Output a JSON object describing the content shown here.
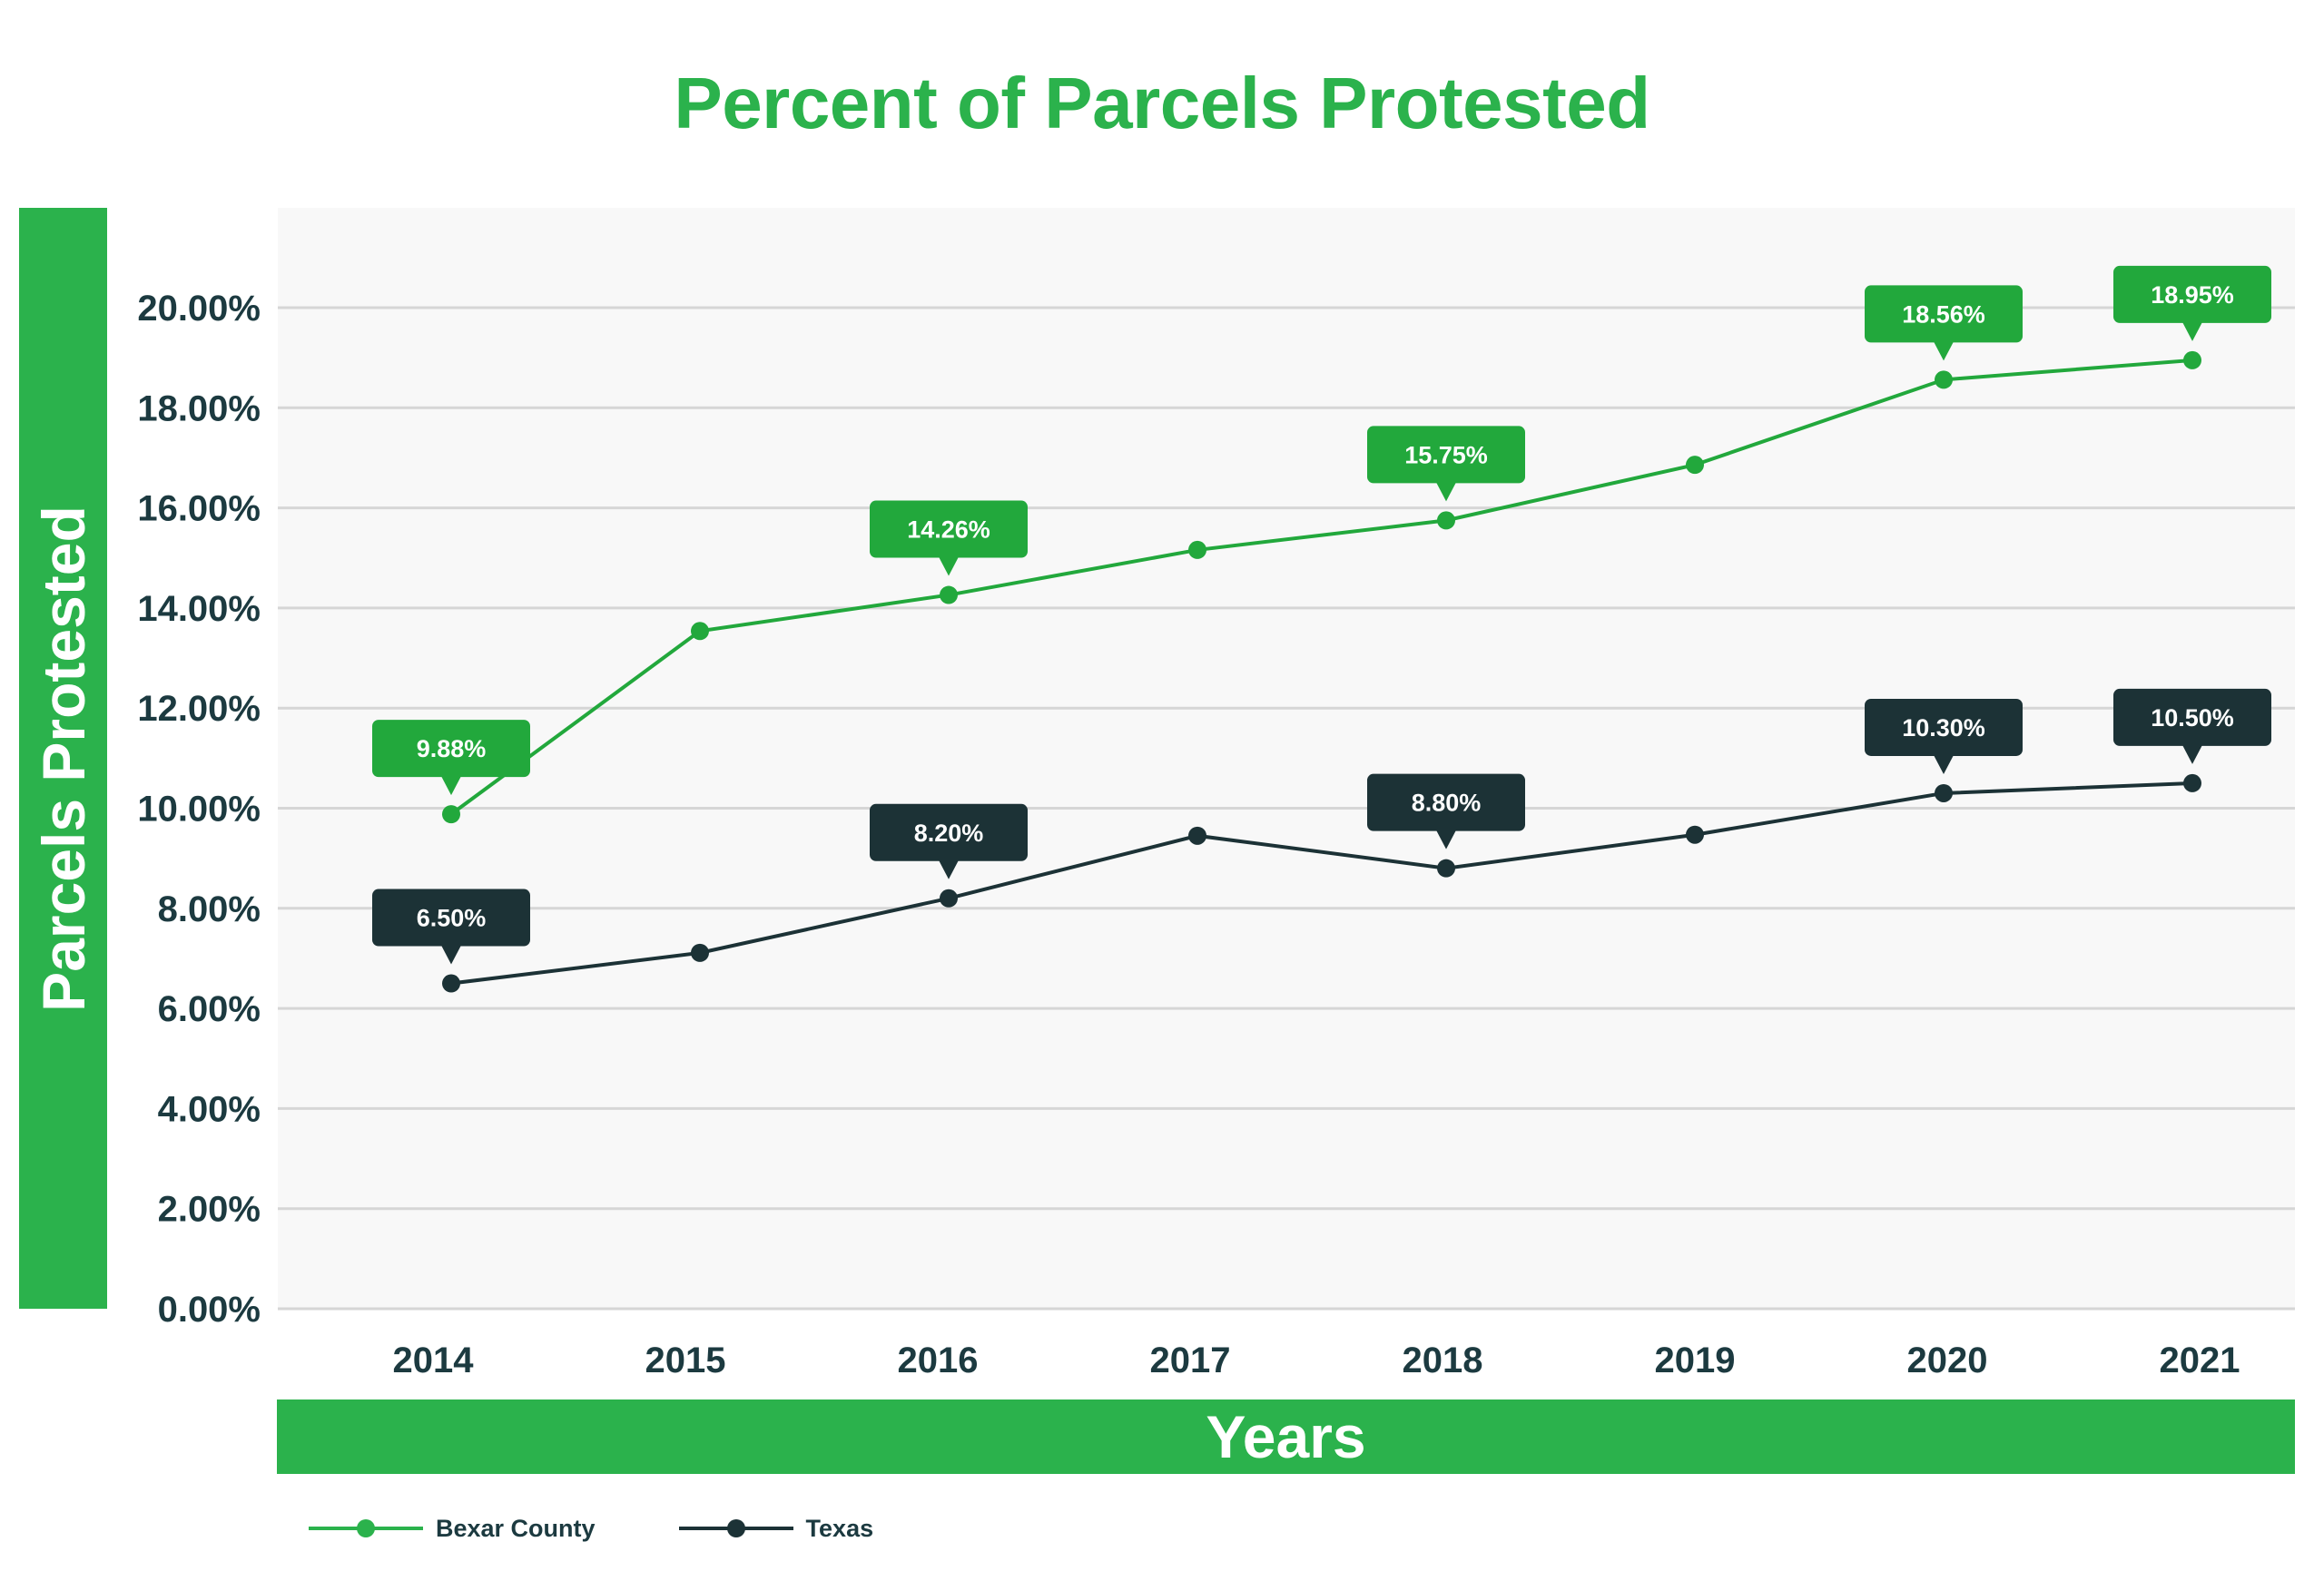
{
  "chart_data": {
    "type": "line",
    "title": "Percent of Parcels Protested",
    "xlabel": "Years",
    "ylabel": "Parcels Protested",
    "categories": [
      "2014",
      "2015",
      "2016",
      "2017",
      "2018",
      "2019",
      "2020",
      "2021"
    ],
    "ylim": [
      0,
      20
    ],
    "yticks": [
      0,
      2,
      4,
      6,
      8,
      10,
      12,
      14,
      16,
      18,
      20
    ],
    "ytick_labels": [
      "0.00%",
      "2.00%",
      "4.00%",
      "6.00%",
      "8.00%",
      "10.00%",
      "12.00%",
      "14.00%",
      "16.00%",
      "18.00%",
      "20.00%"
    ],
    "grid": true,
    "legend_position": "bottom-left",
    "series": [
      {
        "name": "Bexar County",
        "color": "#22A83C",
        "values": [
          9.88,
          13.54,
          14.26,
          15.16,
          15.75,
          16.86,
          18.56,
          18.95
        ],
        "data_labels": [
          "9.88%",
          null,
          "14.26%",
          null,
          "15.75%",
          null,
          "18.56%",
          "18.95%"
        ]
      },
      {
        "name": "Texas",
        "color": "#1C3236",
        "values": [
          6.5,
          7.11,
          8.2,
          9.45,
          8.8,
          9.47,
          10.3,
          10.5
        ],
        "data_labels": [
          "6.50%",
          null,
          "8.20%",
          null,
          "8.80%",
          null,
          "10.30%",
          "10.50%"
        ]
      }
    ]
  },
  "colors": {
    "accent_green": "#2BB24C",
    "text_dark": "#1C3A40",
    "plot_background": "#F8F8F8",
    "gridline": "#D6D6D6"
  }
}
